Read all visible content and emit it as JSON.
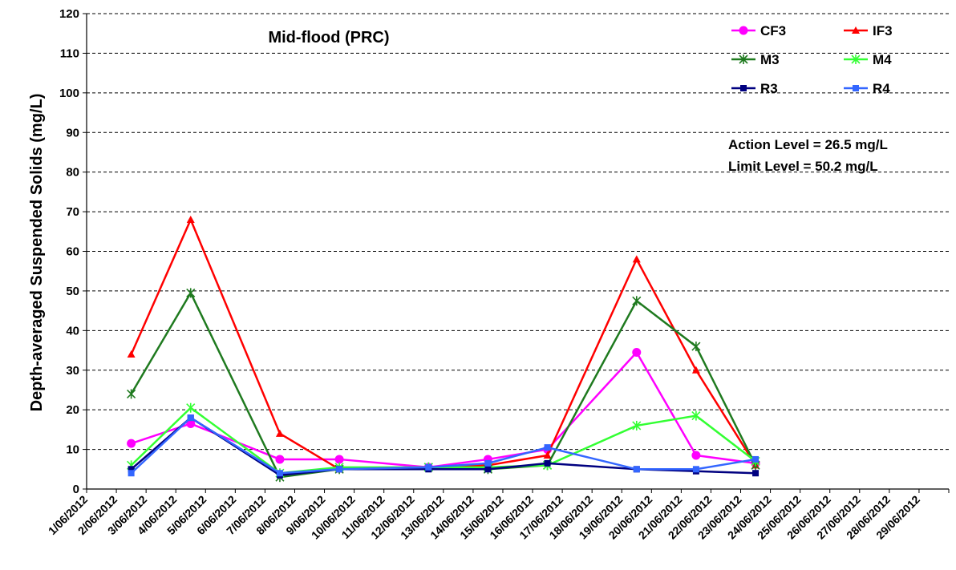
{
  "chart_data": {
    "type": "line",
    "title": "Mid-flood (PRC)",
    "ylabel": "Depth-averaged Suspended Solids (mg/L)",
    "xlabel": "",
    "ylim": [
      0,
      120
    ],
    "yticks": [
      0,
      10,
      20,
      30,
      40,
      50,
      60,
      70,
      80,
      90,
      100,
      110,
      120
    ],
    "grid": "horizontal dashed",
    "legend_position": "top-right",
    "categories": [
      "1/06/2012",
      "2/06/2012",
      "3/06/2012",
      "4/06/2012",
      "5/06/2012",
      "6/06/2012",
      "7/06/2012",
      "8/06/2012",
      "9/06/2012",
      "10/06/2012",
      "11/06/2012",
      "12/06/2012",
      "13/06/2012",
      "14/06/2012",
      "15/06/2012",
      "16/06/2012",
      "17/06/2012",
      "18/06/2012",
      "19/06/2012",
      "20/06/2012",
      "21/06/2012",
      "22/06/2012",
      "23/06/2012",
      "24/06/2012",
      "25/06/2012",
      "26/06/2012",
      "27/06/2012",
      "28/06/2012",
      "29/06/2012"
    ],
    "series": [
      {
        "name": "CF3",
        "color": "#ff00ff",
        "marker": "circle",
        "x": [
          "2/06/2012",
          "4/06/2012",
          "7/06/2012",
          "9/06/2012",
          "12/06/2012",
          "14/06/2012",
          "16/06/2012",
          "19/06/2012",
          "21/06/2012",
          "23/06/2012"
        ],
        "values": [
          11.5,
          16.5,
          7.5,
          7.5,
          5.5,
          7.5,
          10,
          34.5,
          8.5,
          6.5
        ]
      },
      {
        "name": "IF3",
        "color": "#ff0000",
        "marker": "triangle",
        "x": [
          "2/06/2012",
          "4/06/2012",
          "7/06/2012",
          "9/06/2012",
          "12/06/2012",
          "14/06/2012",
          "16/06/2012",
          "19/06/2012",
          "21/06/2012",
          "23/06/2012"
        ],
        "values": [
          34,
          68,
          14,
          5,
          5.5,
          6,
          8.5,
          58,
          30,
          6
        ]
      },
      {
        "name": "M3",
        "color": "#1f7a1f",
        "marker": "asterisk",
        "x": [
          "2/06/2012",
          "4/06/2012",
          "7/06/2012",
          "9/06/2012",
          "12/06/2012",
          "14/06/2012",
          "16/06/2012",
          "19/06/2012",
          "21/06/2012",
          "23/06/2012"
        ],
        "values": [
          24,
          49.5,
          3,
          5,
          5.5,
          5,
          6,
          47.5,
          36,
          6
        ]
      },
      {
        "name": "M4",
        "color": "#33ff33",
        "marker": "asterisk",
        "x": [
          "2/06/2012",
          "4/06/2012",
          "7/06/2012",
          "9/06/2012",
          "12/06/2012",
          "14/06/2012",
          "16/06/2012",
          "19/06/2012",
          "21/06/2012",
          "23/06/2012"
        ],
        "values": [
          6,
          20.5,
          4,
          5.5,
          5.5,
          5.5,
          6,
          16,
          18.5,
          7
        ]
      },
      {
        "name": "R3",
        "color": "#000080",
        "marker": "square",
        "x": [
          "2/06/2012",
          "4/06/2012",
          "7/06/2012",
          "9/06/2012",
          "12/06/2012",
          "14/06/2012",
          "16/06/2012",
          "19/06/2012",
          "21/06/2012",
          "23/06/2012"
        ],
        "values": [
          5,
          18,
          3.5,
          5,
          5,
          5,
          6.5,
          5,
          4.5,
          4
        ]
      },
      {
        "name": "R4",
        "color": "#3366ff",
        "marker": "square",
        "x": [
          "2/06/2012",
          "4/06/2012",
          "7/06/2012",
          "9/06/2012",
          "12/06/2012",
          "14/06/2012",
          "16/06/2012",
          "19/06/2012",
          "21/06/2012",
          "23/06/2012"
        ],
        "values": [
          4,
          18,
          4,
          5,
          5.5,
          6.5,
          10.5,
          5,
          5,
          7.5
        ]
      }
    ],
    "annotations": [
      "Action Level = 26.5 mg/L",
      "Limit Level = 50.2 mg/L"
    ]
  }
}
